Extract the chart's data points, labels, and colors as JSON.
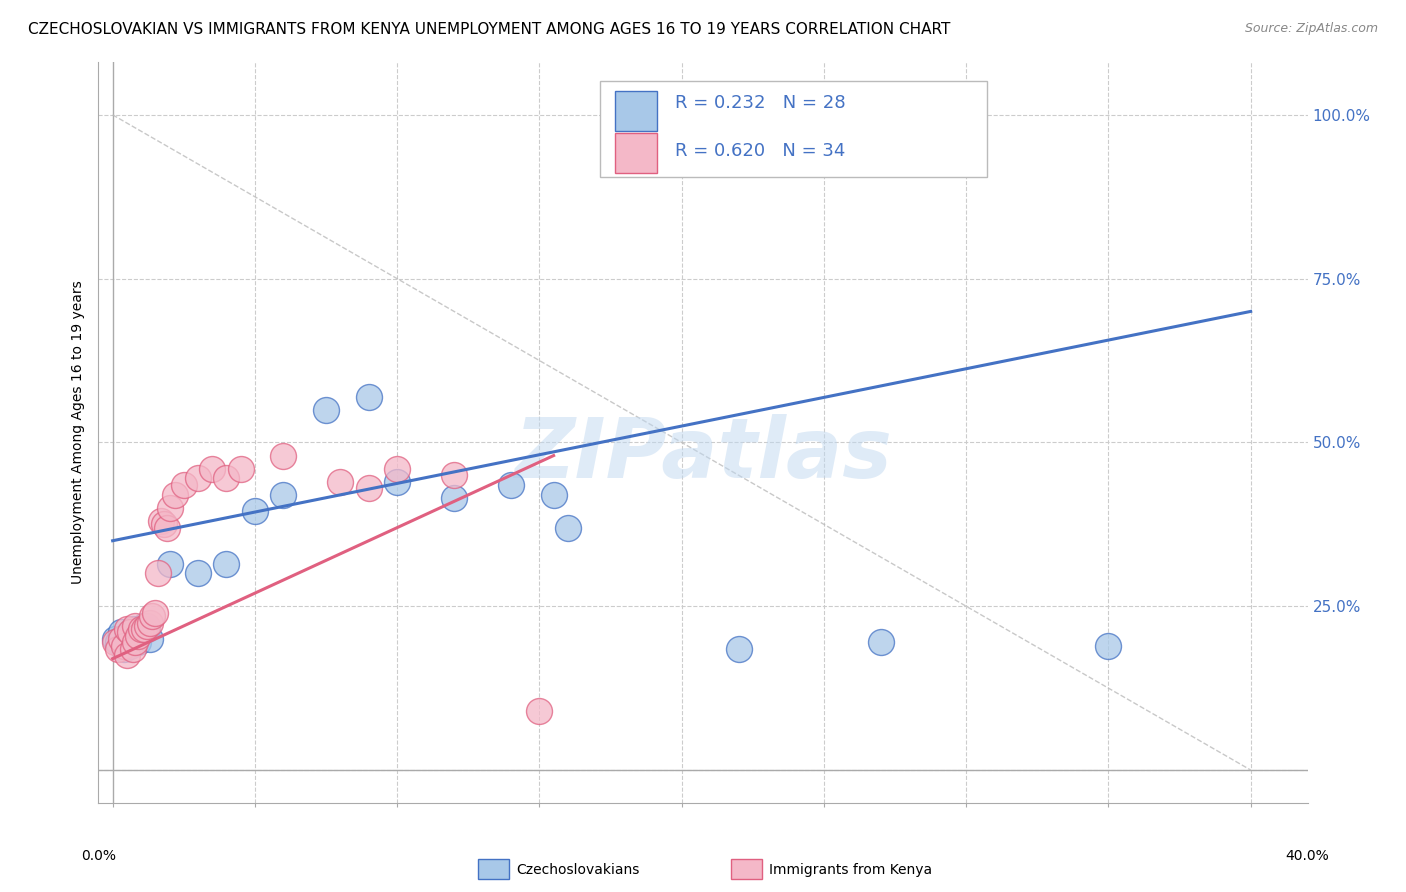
{
  "title": "CZECHOSLOVAKIAN VS IMMIGRANTS FROM KENYA UNEMPLOYMENT AMONG AGES 16 TO 19 YEARS CORRELATION CHART",
  "source_text": "Source: ZipAtlas.com",
  "ylabel": "Unemployment Among Ages 16 to 19 years",
  "blue_R": 0.232,
  "blue_N": 28,
  "pink_R": 0.62,
  "pink_N": 34,
  "blue_color": "#A8C8E8",
  "pink_color": "#F4B8C8",
  "blue_line_color": "#4472C4",
  "pink_line_color": "#E06080",
  "watermark": "ZIPatlas",
  "legend_label_blue": "Czechoslovakians",
  "legend_label_pink": "Immigrants from Kenya",
  "blue_scatter_x": [
    0.001,
    0.002,
    0.003,
    0.004,
    0.005,
    0.006,
    0.007,
    0.008,
    0.009,
    0.01,
    0.011,
    0.012,
    0.013,
    0.02,
    0.03,
    0.04,
    0.05,
    0.06,
    0.075,
    0.09,
    0.1,
    0.12,
    0.14,
    0.155,
    0.16,
    0.22,
    0.27,
    0.35
  ],
  "blue_scatter_y": [
    0.2,
    0.195,
    0.21,
    0.185,
    0.205,
    0.19,
    0.215,
    0.2,
    0.195,
    0.21,
    0.22,
    0.215,
    0.2,
    0.315,
    0.3,
    0.315,
    0.395,
    0.42,
    0.55,
    0.57,
    0.44,
    0.415,
    0.435,
    0.42,
    0.37,
    0.185,
    0.195,
    0.19
  ],
  "pink_scatter_x": [
    0.001,
    0.002,
    0.003,
    0.004,
    0.005,
    0.005,
    0.006,
    0.007,
    0.008,
    0.008,
    0.009,
    0.01,
    0.011,
    0.012,
    0.013,
    0.014,
    0.015,
    0.016,
    0.017,
    0.018,
    0.019,
    0.02,
    0.022,
    0.025,
    0.03,
    0.035,
    0.04,
    0.045,
    0.06,
    0.08,
    0.09,
    0.1,
    0.12,
    0.15
  ],
  "pink_scatter_y": [
    0.195,
    0.185,
    0.2,
    0.19,
    0.175,
    0.215,
    0.21,
    0.185,
    0.22,
    0.195,
    0.205,
    0.215,
    0.215,
    0.22,
    0.225,
    0.235,
    0.24,
    0.3,
    0.38,
    0.375,
    0.37,
    0.4,
    0.42,
    0.435,
    0.445,
    0.46,
    0.445,
    0.46,
    0.48,
    0.44,
    0.43,
    0.46,
    0.45,
    0.09
  ],
  "blue_trend_x": [
    0.0,
    0.4
  ],
  "blue_trend_y": [
    0.35,
    0.7
  ],
  "pink_trend_x": [
    0.0,
    0.155
  ],
  "pink_trend_y": [
    0.17,
    0.48
  ],
  "ref_line_x": [
    0.0,
    0.4
  ],
  "ref_line_y": [
    1.0,
    0.0
  ],
  "grid_color": "#CCCCCC",
  "bg_color": "#FFFFFF",
  "tick_label_color": "#4472C4",
  "xlim": [
    -0.005,
    0.42
  ],
  "ylim": [
    -0.05,
    1.08
  ],
  "x_ticks": [
    0.0,
    0.05,
    0.1,
    0.15,
    0.2,
    0.25,
    0.3,
    0.35,
    0.4
  ],
  "y_ticks": [
    0.0,
    0.25,
    0.5,
    0.75,
    1.0
  ],
  "y_tick_labels": [
    "",
    "25.0%",
    "50.0%",
    "75.0%",
    "100.0%"
  ]
}
